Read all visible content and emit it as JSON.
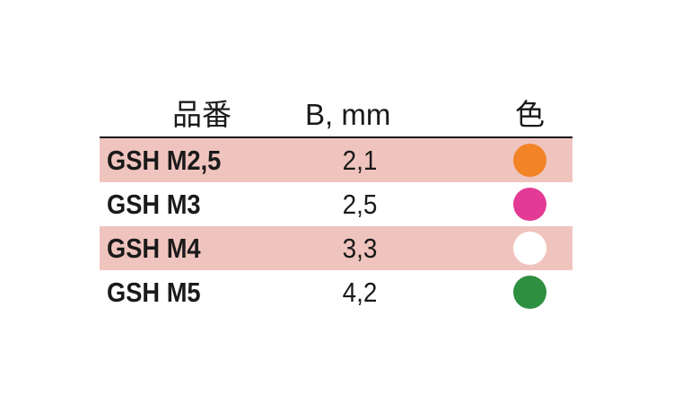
{
  "header": {
    "part_no": "品番",
    "b_mm": "B, mm",
    "color": "色"
  },
  "rows": [
    {
      "name": "GSH M2,5",
      "b": "2,1",
      "color": "#f28326",
      "shaded": true
    },
    {
      "name": "GSH M3",
      "b": "2,5",
      "color": "#e23a95",
      "shaded": false
    },
    {
      "name": "GSH M4",
      "b": "3,3",
      "color": "#ffffff",
      "shaded": true
    },
    {
      "name": "GSH M5",
      "b": "4,2",
      "color": "#2e8f40",
      "shaded": false
    }
  ],
  "colors": {
    "row_shade": "#f0c4be"
  }
}
